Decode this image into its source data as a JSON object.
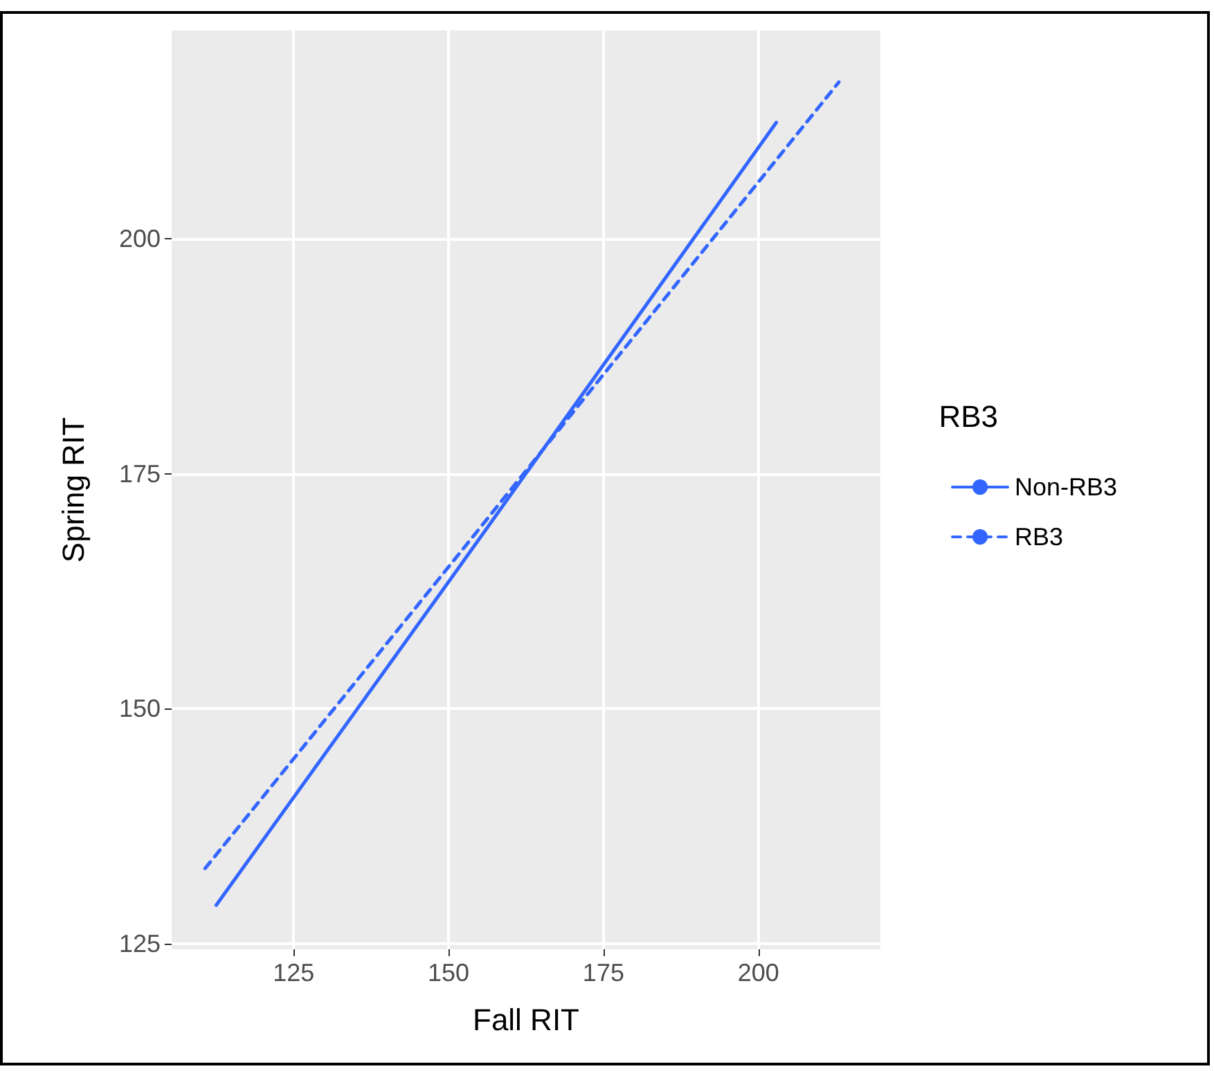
{
  "chart_data": {
    "type": "line",
    "xlabel": "Fall RIT",
    "ylabel": "Spring RIT",
    "legend_title": "RB3",
    "xlim": [
      105.3,
      219.7
    ],
    "xticks": [
      125,
      150,
      175,
      200
    ],
    "ylim": [
      124.4,
      222.2
    ],
    "yticks": [
      125,
      150,
      175,
      200
    ],
    "grid": true,
    "legend": "right",
    "marker": "none",
    "series": [
      {
        "name": "Non-RB3",
        "color": "#3366ff",
        "line_style": "solid",
        "x": [
          112.5,
          150,
          202.9
        ],
        "values": [
          129.1,
          163.5,
          212.4
        ]
      },
      {
        "name": "RB3",
        "color": "#3366ff",
        "line_style": "dashed",
        "x": [
          110.7,
          150,
          213
        ],
        "values": [
          133,
          165.1,
          216.7
        ]
      }
    ]
  }
}
